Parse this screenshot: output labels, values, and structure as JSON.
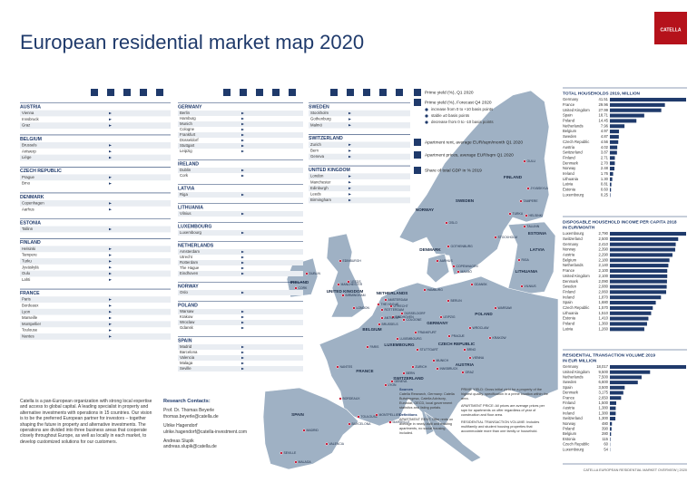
{
  "header": {
    "title": "European residential market map 2020",
    "logo": "CATELLA"
  },
  "legend": {
    "prime_yield": "Prime yield (%), Q1 2020",
    "forecast": "Prime yield (%), Forecast Q4 2020",
    "increase": "increase from 0 to +10 basis points",
    "stable": "stable ±0 basis points",
    "decrease": "decrease from 0 to -10 basis points",
    "rent": "Apartment rent, average EUR/sqm/month Q1 2020",
    "prices": "Apartment prices, average EUR/sqm Q1 2020",
    "gdp": "Share of total GDP in % 2019"
  },
  "tables": [
    {
      "country": "AUSTRIA",
      "cities": [
        "Vienna",
        "Innsbruck",
        "Graz"
      ]
    },
    {
      "country": "BELGIUM",
      "cities": [
        "Brussels",
        "Antwerp",
        "Liège"
      ]
    },
    {
      "country": "CZECH REPUBLIC",
      "cities": [
        "Prague",
        "Brno"
      ]
    },
    {
      "country": "DENMARK",
      "cities": [
        "Copenhagen",
        "Aarhus"
      ]
    },
    {
      "country": "ESTONIA",
      "cities": [
        "Tallinn"
      ]
    },
    {
      "country": "FINLAND",
      "cities": [
        "Helsinki",
        "Tampere",
        "Turku",
        "Jyväskylä",
        "Oulu",
        "Lahti"
      ]
    },
    {
      "country": "FRANCE",
      "cities": [
        "Paris",
        "Bordeaux",
        "Lyon",
        "Marseille",
        "Montpellier",
        "Toulouse",
        "Nantes"
      ]
    },
    {
      "country": "GERMANY",
      "cities": [
        "Berlin",
        "Hamburg",
        "Munich",
        "Cologne",
        "Frankfurt",
        "Düsseldorf",
        "Stuttgart",
        "Leipzig"
      ]
    },
    {
      "country": "IRELAND",
      "cities": [
        "Dublin",
        "Cork"
      ]
    },
    {
      "country": "LATVIA",
      "cities": [
        "Riga"
      ]
    },
    {
      "country": "LITHUANIA",
      "cities": [
        "Vilnius"
      ]
    },
    {
      "country": "LUXEMBOURG",
      "cities": [
        "Luxembourg"
      ]
    },
    {
      "country": "NETHERLANDS",
      "cities": [
        "Amsterdam",
        "Utrecht",
        "Rotterdam",
        "The Hague",
        "Eindhoven"
      ]
    },
    {
      "country": "NORWAY",
      "cities": [
        "Oslo"
      ]
    },
    {
      "country": "POLAND",
      "cities": [
        "Warsaw",
        "Krakow",
        "Wroclaw",
        "Gdansk"
      ]
    },
    {
      "country": "SPAIN",
      "cities": [
        "Madrid",
        "Barcelona",
        "Valencia",
        "Malaga",
        "Seville"
      ]
    },
    {
      "country": "SWEDEN",
      "cities": [
        "Stockholm",
        "Gothenburg",
        "Malmö"
      ]
    },
    {
      "country": "SWITZERLAND",
      "cities": [
        "Zurich",
        "Bern",
        "Geneva"
      ]
    },
    {
      "country": "UNITED KINGDOM",
      "cities": [
        "London",
        "Manchester",
        "Edinburgh",
        "Leeds",
        "Birmingham"
      ]
    }
  ],
  "map": {
    "countries": [
      "NORWAY",
      "SWEDEN",
      "FINLAND",
      "ESTONIA",
      "LATVIA",
      "LITHUANIA",
      "DENMARK",
      "UNITED KINGDOM",
      "IRELAND",
      "NETHERLANDS",
      "BELGIUM",
      "LUXEMBOURG",
      "GERMANY",
      "POLAND",
      "CZECH REPUBLIC",
      "AUSTRIA",
      "SWITZERLAND",
      "FRANCE",
      "SPAIN"
    ],
    "cities": [
      "OSLO",
      "STOCKHOLM",
      "GOTHENBURG",
      "MALMÖ",
      "HELSINKI",
      "TAMPERE",
      "TURKU",
      "JYVÄSKYLÄ",
      "OULU",
      "TALLINN",
      "RIGA",
      "VILNIUS",
      "COPENHAGEN",
      "AARHUS",
      "EDINBURGH",
      "MANCHESTER",
      "LEEDS",
      "BIRMINGHAM",
      "LONDON",
      "DUBLIN",
      "CORK",
      "AMSTERDAM",
      "UTRECHT",
      "THE HAGUE",
      "ROTTERDAM",
      "EINDHOVEN",
      "BRUSSELS",
      "ANTWERP",
      "LUXEMBOURG",
      "HAMBURG",
      "BERLIN",
      "COLOGNE",
      "DÜSSELDORF",
      "FRANKFURT",
      "LEIPZIG",
      "STUTTGART",
      "MUNICH",
      "WARSAW",
      "GDANSK",
      "WROCLAW",
      "KRAKOW",
      "PRAGUE",
      "BRNO",
      "VIENNA",
      "GRAZ",
      "INNSBRUCK",
      "ZURICH",
      "BERN",
      "GENEVA",
      "PARIS",
      "NANTES",
      "BORDEAUX",
      "LYON",
      "TOULOUSE",
      "MONTPELLIER",
      "MARSEILLE",
      "MADRID",
      "BARCELONA",
      "VALENCIA",
      "SEVILLE",
      "MALAGA"
    ]
  },
  "about": "Catella is a pan-European organization with strong local expertise and access to global capital. A leading specialist in property and alternative investments with operations in 15 countries. Our vision is to be the preferred European partner for investors – together shaping the future in property and alternative investments. The operations are divided into three business areas that cooperate closely throughout Europe, as well as locally in each market, to develop customized solutions for our customers.",
  "contacts": {
    "heading": "Research Contacts:",
    "lines": [
      "Prof. Dr. Thomas Beyerle",
      "thomas.beyerle@catella.de",
      "Ulrike Hagendorf",
      "ulrike.hagendorf@catella-investment.com",
      "Andreas Slupik",
      "andreas.slupik@catella.de"
    ]
  },
  "sources": {
    "heading": "Sources",
    "text": "Catella Research, Germany: Catella Bulwiengesa, Catella Advisory, Eurostat, OECD, local government statistics and listing portals.",
    "definitions_heading": "Definitions",
    "definitions": "APARTMENT RENT: Offer rents on average in newly-built and existing apartments, no social housing included."
  },
  "notes": {
    "yield": "PRIME YIELD: Gross initial yield for a property of the highest quality, specification in a prime location within the area.",
    "prices": "APARTMENT PRICE: All prices are average prices per sqm for apartments on offer regardless of year of construction and floor area.",
    "volume": "RESIDENTIAL TRANSACTION VOLUME: Includes multifamily and student housing properties that accommodate more than one family or household."
  },
  "footer": "CATELLA EUROPEAN RESIDENTIAL MARKET OVERVIEW | 2020",
  "chart_data": [
    {
      "type": "bar",
      "title": "TOTAL HOUSEHOLDS 2019, MILLION",
      "color": "#1f3a6b",
      "categories": [
        "Germany",
        "France",
        "United Kingdom",
        "Spain",
        "Poland",
        "Netherlands",
        "Belgium",
        "Sweden",
        "Czech Republic",
        "Austria",
        "Switzerland",
        "Finland",
        "Denmark",
        "Norway",
        "Ireland",
        "Lithuania",
        "Latvia",
        "Estonia",
        "Luxembourg"
      ],
      "values": [
        41.51,
        29.96,
        27.99,
        18.71,
        14.45,
        7.96,
        4.97,
        4.87,
        4.56,
        4.02,
        3.87,
        2.71,
        2.7,
        2.48,
        1.76,
        1.3,
        0.81,
        0.6,
        0.25
      ],
      "value_labels": [
        "41.51",
        "29.96",
        "27.99",
        "18.71",
        "14.45",
        "7.96",
        "4.97",
        "4.87",
        "4.56",
        "4.02",
        "3.87",
        "2.71",
        "2.70",
        "2.48",
        "1.76",
        "1.30",
        "0.81",
        "0.60",
        "0.25"
      ]
    },
    {
      "type": "bar",
      "title": "DISPOSABLE HOUSEHOLD INCOME PER CAPITA 2018",
      "subtitle": "IN EUR/MONTH",
      "color": "#1f3a6b",
      "categories": [
        "Luxembourg",
        "Switzerland",
        "Germany",
        "Norway",
        "Austria",
        "Belgium",
        "Netherlands",
        "France",
        "United Kingdom",
        "Denmark",
        "Sweden",
        "Finland",
        "Ireland",
        "Spain",
        "Czech Republic",
        "Lithuania",
        "Estonia",
        "Poland",
        "Latvia"
      ],
      "values": [
        2790,
        2500,
        2410,
        2390,
        2290,
        2180,
        2140,
        2100,
        2100,
        2090,
        2080,
        2060,
        1870,
        1680,
        1570,
        1510,
        1410,
        1360,
        1260
      ],
      "value_labels": [
        "2,790",
        "2,500",
        "2,410",
        "2,390",
        "2,290",
        "2,180",
        "2,140",
        "2,100",
        "2,100",
        "2,090",
        "2,080",
        "2,060",
        "1,870",
        "1,680",
        "1,570",
        "1,510",
        "1,410",
        "1,360",
        "1,260"
      ]
    },
    {
      "type": "bar",
      "title": "RESIDENTIAL TRANSACTION VOLUME 2019",
      "subtitle": "IN EUR MILLION",
      "color": "#1f3a6b",
      "categories": [
        "Germany",
        "United Kingdom",
        "Netherlands",
        "Sweden",
        "Spain",
        "Denmark",
        "France",
        "Finland",
        "Austria",
        "Ireland",
        "Switzerland",
        "Norway",
        "Poland",
        "Belgium",
        "Estonia",
        "Czech Republic",
        "Luxembourg"
      ],
      "values": [
        18017,
        9500,
        7500,
        6600,
        3500,
        3175,
        2650,
        1500,
        1380,
        1380,
        1300,
        480,
        390,
        280,
        115,
        60,
        54
      ],
      "value_labels": [
        "18,017",
        "9,500",
        "7,500",
        "6,600",
        "3,500",
        "3,175",
        "2,650",
        "1,500",
        "1,380",
        "1,380",
        "1,300",
        "480",
        "390",
        "280",
        "115",
        "60",
        "54"
      ]
    }
  ]
}
